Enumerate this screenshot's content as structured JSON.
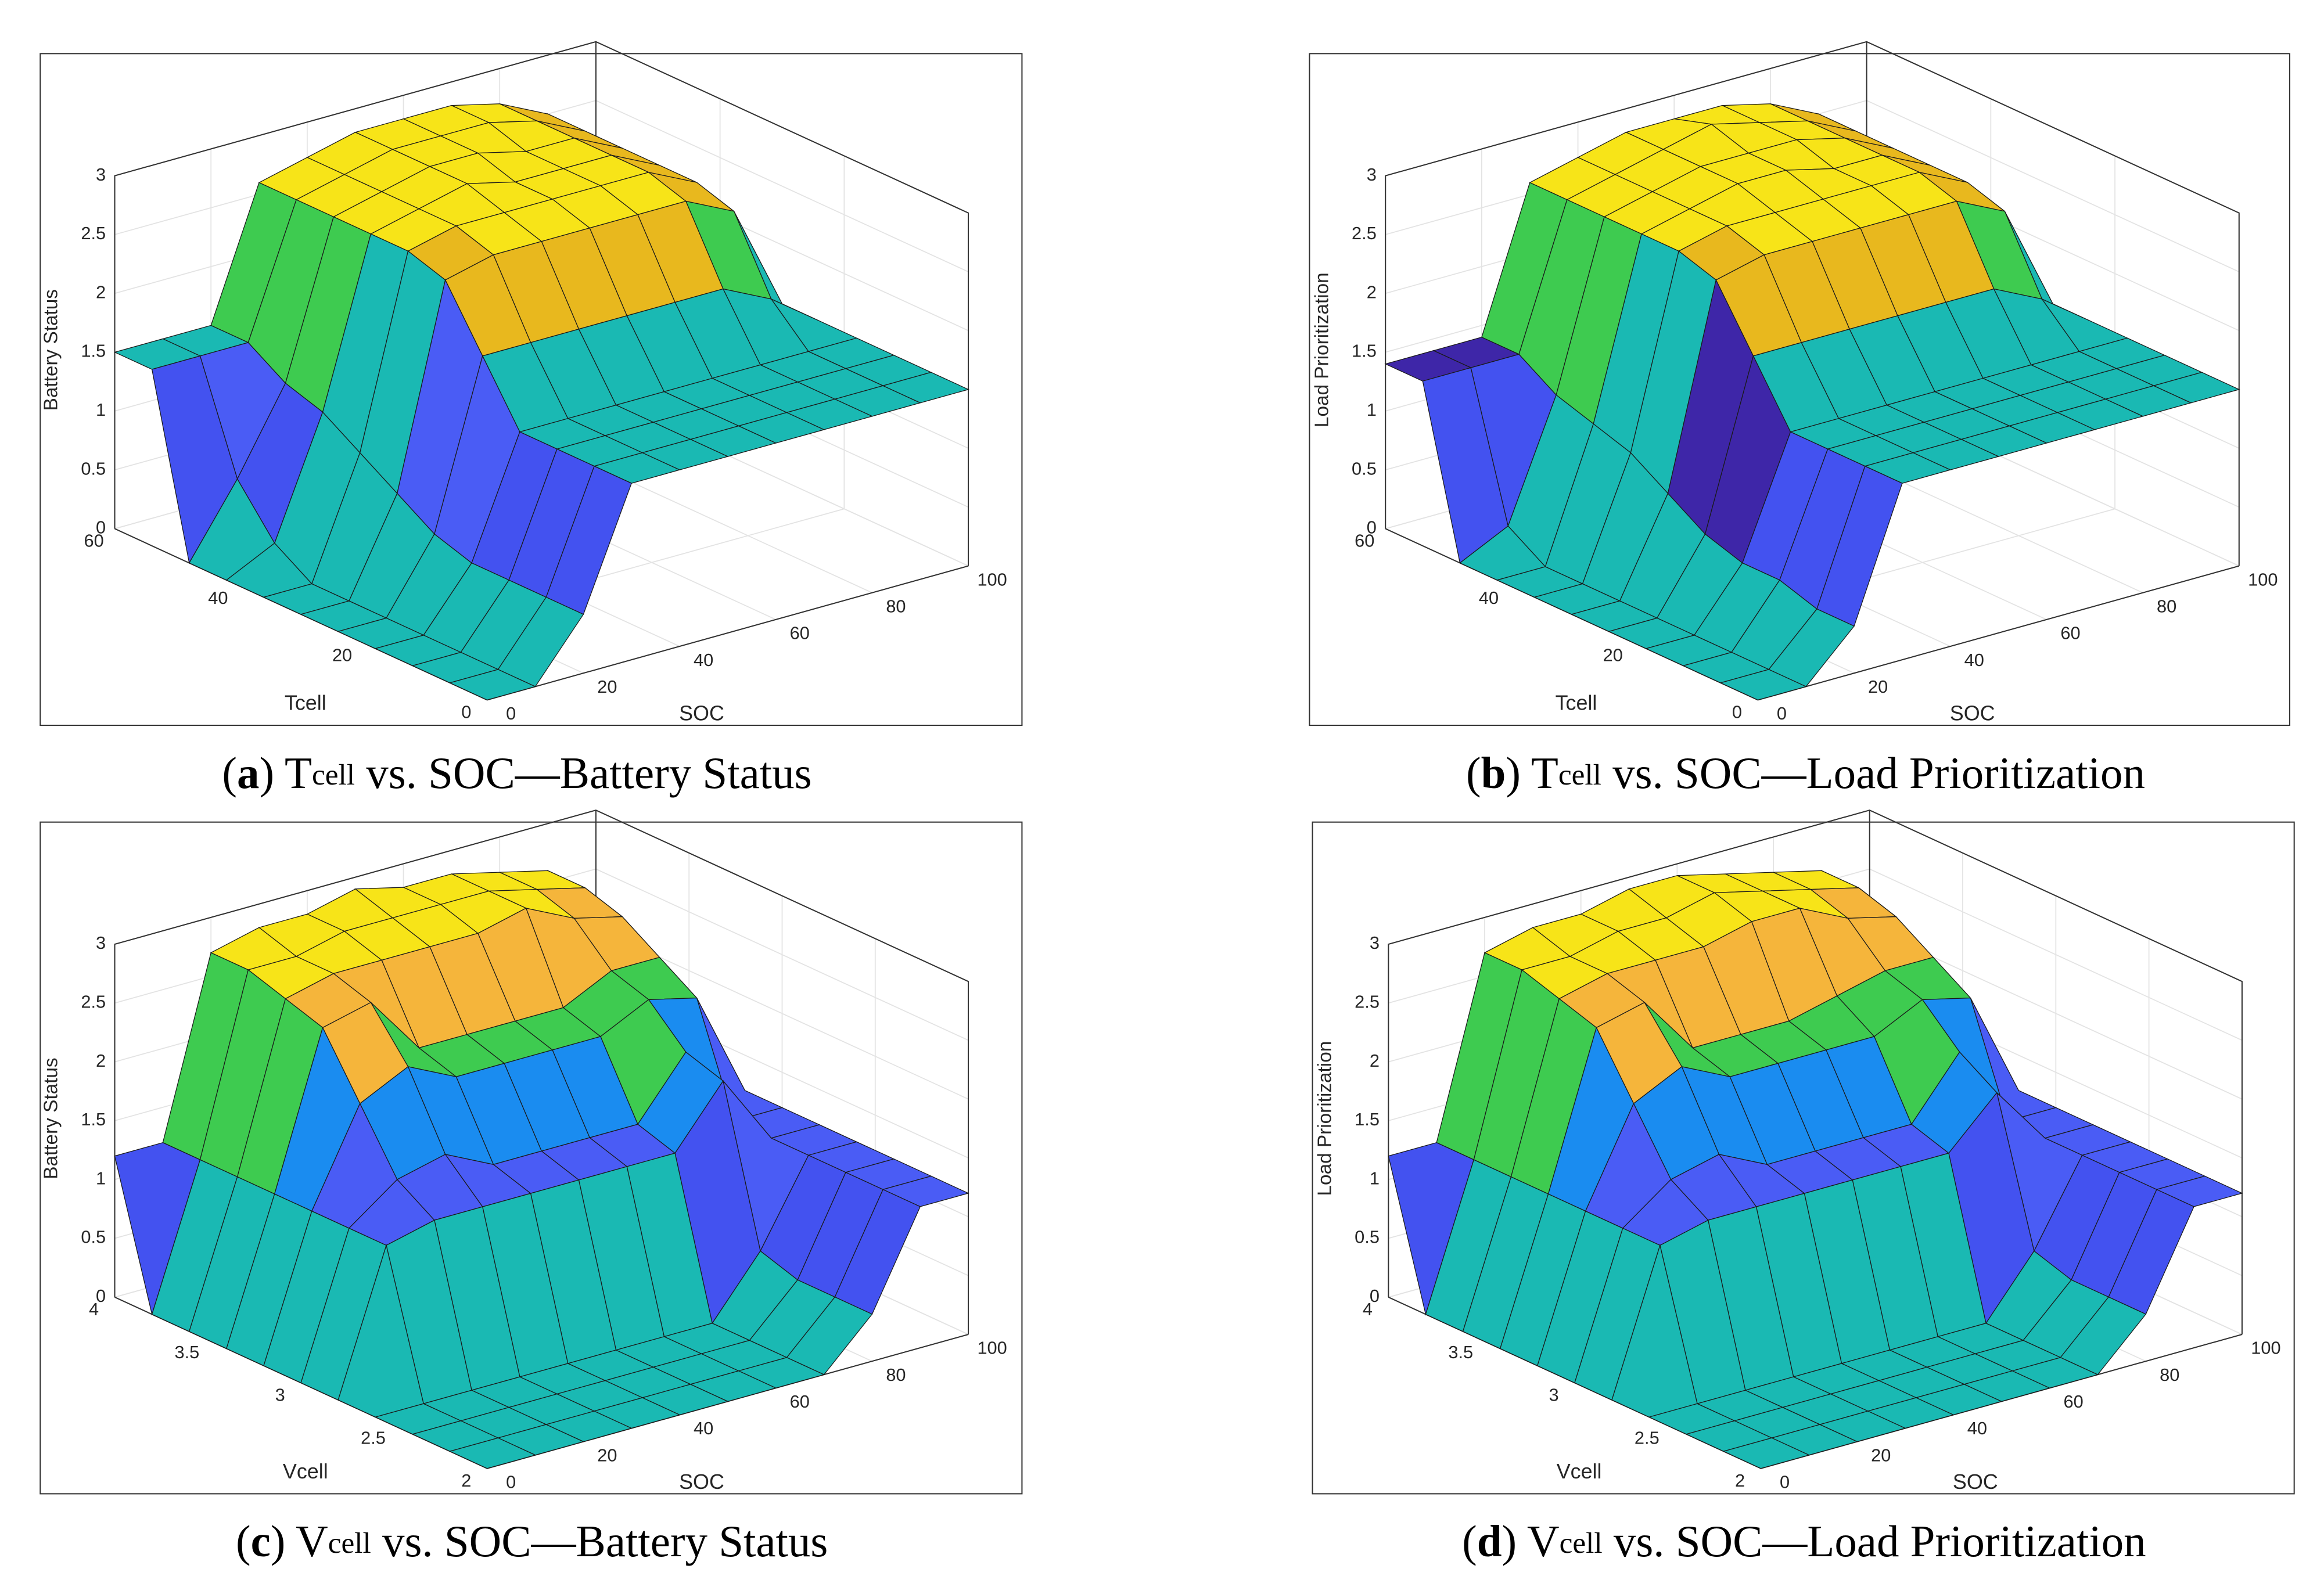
{
  "chart_data": [
    {
      "type": "surface",
      "caption": [
        "(",
        "a",
        ") T",
        "cell",
        " vs. SOC—Battery Status"
      ],
      "xlabel": "SOC",
      "ylabel": "Tcell",
      "zlabel": "Battery Status",
      "x": [
        0,
        10,
        20,
        30,
        40,
        50,
        60,
        70,
        80,
        90,
        100
      ],
      "y": [
        0,
        6,
        12,
        18,
        24,
        30,
        36,
        42,
        48,
        54,
        60
      ],
      "z": [
        [
          0,
          0,
          0.5,
          1.5,
          1.5,
          1.5,
          1.5,
          1.5,
          1.5,
          1.5,
          1.5
        ],
        [
          0,
          0,
          0.5,
          1.5,
          1.5,
          1.5,
          1.5,
          1.5,
          1.5,
          1.5,
          1.5
        ],
        [
          0,
          0,
          0.5,
          1.5,
          1.5,
          1.5,
          1.5,
          1.5,
          1.5,
          1.5,
          1.5
        ],
        [
          0,
          0,
          0.5,
          1.5,
          1.5,
          1.5,
          1.5,
          1.5,
          1.5,
          1.5,
          1.5
        ],
        [
          0,
          0,
          0.6,
          2,
          2,
          2,
          2,
          2,
          2,
          1.8,
          1.5
        ],
        [
          0,
          0,
          0.8,
          2.5,
          2.6,
          2.6,
          2.6,
          2.6,
          2.6,
          2.4,
          1.5
        ],
        [
          0,
          0,
          1,
          2.6,
          2.7,
          2.7,
          2.7,
          2.7,
          2.7,
          2.5,
          1.5
        ],
        [
          0,
          0.2,
          1.2,
          2.6,
          2.7,
          2.8,
          2.7,
          2.7,
          2.7,
          2.5,
          1.5
        ],
        [
          0,
          0.6,
          1.3,
          2.6,
          2.7,
          2.8,
          2.8,
          2.7,
          2.7,
          2.5,
          1.5
        ],
        [
          1.5,
          1.5,
          1.5,
          2.6,
          2.7,
          2.8,
          2.8,
          2.8,
          2.7,
          2.5,
          1.5
        ],
        [
          1.5,
          1.5,
          1.5,
          2.6,
          2.7,
          2.8,
          2.8,
          2.8,
          2.7,
          2.5,
          1.5
        ]
      ],
      "xlim": [
        0,
        100
      ],
      "ylim": [
        0,
        60
      ],
      "zlim": [
        0,
        3
      ],
      "xticks": [
        0,
        20,
        40,
        60,
        80,
        100
      ],
      "yticks": [
        0,
        20,
        40,
        60
      ],
      "zticks": [
        0,
        0.5,
        1,
        1.5,
        2,
        2.5,
        3
      ],
      "grid": true,
      "clim": [
        0,
        3
      ],
      "colormap": [
        "#1ab9b3",
        "#1ab9b3",
        "#4352f0",
        "#4a5cf5",
        "#1ab9b3",
        "#3ecb50",
        "#e8b81e",
        "#f7e418"
      ]
    },
    {
      "type": "surface",
      "caption": [
        "(",
        "b",
        ") T",
        "cell",
        " vs. SOC—Load Prioritization"
      ],
      "xlabel": "SOC",
      "ylabel": "Tcell",
      "zlabel": "Load Prioritization",
      "x": [
        0,
        10,
        20,
        30,
        40,
        50,
        60,
        70,
        80,
        90,
        100
      ],
      "y": [
        0,
        6,
        12,
        18,
        24,
        30,
        36,
        42,
        48,
        54,
        60
      ],
      "z": [
        [
          0,
          0,
          0.4,
          1.5,
          1.5,
          1.5,
          1.5,
          1.5,
          1.5,
          1.5,
          1.5
        ],
        [
          0,
          0,
          0.4,
          1.5,
          1.5,
          1.5,
          1.5,
          1.5,
          1.5,
          1.5,
          1.5
        ],
        [
          0,
          0,
          0.5,
          1.5,
          1.5,
          1.5,
          1.5,
          1.5,
          1.5,
          1.5,
          1.5
        ],
        [
          0,
          0,
          0.5,
          1.5,
          1.5,
          1.5,
          1.5,
          1.5,
          1.5,
          1.5,
          1.5
        ],
        [
          0,
          0,
          0.6,
          2,
          2,
          2,
          2,
          2,
          2,
          1.8,
          1.5
        ],
        [
          0,
          0,
          0.8,
          2.5,
          2.6,
          2.6,
          2.6,
          2.6,
          2.6,
          2.4,
          1.5
        ],
        [
          0,
          0,
          1,
          2.6,
          2.7,
          2.7,
          2.7,
          2.7,
          2.7,
          2.5,
          1.5
        ],
        [
          0,
          0,
          1.1,
          2.6,
          2.7,
          2.8,
          2.8,
          2.7,
          2.7,
          2.5,
          1.5
        ],
        [
          0,
          0.2,
          1.2,
          2.6,
          2.7,
          2.8,
          2.8,
          2.8,
          2.7,
          2.5,
          1.5
        ],
        [
          1.4,
          1.4,
          1.4,
          2.6,
          2.7,
          2.8,
          2.9,
          2.8,
          2.7,
          2.5,
          1.5
        ],
        [
          1.4,
          1.4,
          1.4,
          2.6,
          2.7,
          2.8,
          2.8,
          2.8,
          2.7,
          2.5,
          1.5
        ]
      ],
      "xlim": [
        0,
        100
      ],
      "ylim": [
        0,
        60
      ],
      "zlim": [
        0,
        3
      ],
      "xticks": [
        0,
        20,
        40,
        60,
        80,
        100
      ],
      "yticks": [
        0,
        20,
        40,
        60
      ],
      "zticks": [
        0,
        0.5,
        1,
        1.5,
        2,
        2.5,
        3
      ],
      "grid": true,
      "clim": [
        0,
        3
      ],
      "colormap": [
        "#1ab9b3",
        "#1ab9b3",
        "#4352f0",
        "#3e26a8",
        "#1ab9b3",
        "#3ecb50",
        "#e8b81e",
        "#f7e418"
      ]
    },
    {
      "type": "surface",
      "caption": [
        "(",
        "c",
        ") V",
        "cell",
        " vs. SOC—Battery Status"
      ],
      "xlabel": "SOC",
      "ylabel": "Vcell",
      "zlabel": "Battery Status",
      "x": [
        0,
        10,
        20,
        30,
        40,
        50,
        60,
        70,
        80,
        90,
        100
      ],
      "y": [
        2,
        2.2,
        2.4,
        2.6,
        2.8,
        3,
        3.2,
        3.4,
        3.6,
        3.8,
        4
      ],
      "z": [
        [
          0,
          0,
          0,
          0,
          0,
          0,
          0,
          0,
          0.4,
          1.2,
          1.2
        ],
        [
          0,
          0,
          0,
          0,
          0,
          0,
          0,
          0,
          0.4,
          1.2,
          1.2
        ],
        [
          0,
          0,
          0,
          0,
          0,
          0,
          0,
          0,
          0.4,
          1.2,
          1.2
        ],
        [
          0,
          0,
          0,
          0,
          0,
          0,
          0,
          0,
          0.5,
          1.2,
          1.2
        ],
        [
          0,
          1.2,
          1.3,
          1.3,
          1.3,
          1.3,
          1.3,
          1.3,
          1.8,
          1.2,
          1.2
        ],
        [
          0,
          1.2,
          1.5,
          1.6,
          1.4,
          1.4,
          1.4,
          1.4,
          1.9,
          1.2,
          1.2
        ],
        [
          0,
          1.2,
          2,
          2.2,
          2,
          2,
          2,
          2,
          2.2,
          2.1,
          1.2
        ],
        [
          0,
          1.2,
          2.5,
          2.6,
          2.1,
          2.1,
          2.1,
          2.1,
          2.3,
          2.3,
          1.2
        ],
        [
          0,
          1.2,
          2.6,
          2.7,
          2.7,
          2.7,
          2.7,
          2.8,
          2.6,
          2.5,
          1.2
        ],
        [
          0,
          1.2,
          2.7,
          2.7,
          2.8,
          2.8,
          2.8,
          2.8,
          2.7,
          2.6,
          1.2
        ],
        [
          1.2,
          1.2,
          2.7,
          2.8,
          2.8,
          2.9,
          2.8,
          2.8,
          2.7,
          2.6,
          1.2
        ]
      ],
      "xlim": [
        0,
        100
      ],
      "ylim": [
        2,
        4
      ],
      "zlim": [
        0,
        3
      ],
      "xticks": [
        0,
        20,
        40,
        60,
        80,
        100
      ],
      "yticks": [
        2,
        2.5,
        3,
        3.5,
        4
      ],
      "zticks": [
        0,
        0.5,
        1,
        1.5,
        2,
        2.5,
        3
      ],
      "grid": true,
      "clim": [
        0,
        3
      ],
      "colormap": [
        "#1ab9b3",
        "#1ab9b3",
        "#4352f0",
        "#4a5cf5",
        "#1a8cf0",
        "#3ecb50",
        "#f5b53b",
        "#f7e418"
      ]
    },
    {
      "type": "surface",
      "caption": [
        "(",
        "d",
        ") V",
        "cell",
        " vs. SOC—Load Prioritization"
      ],
      "xlabel": "SOC",
      "ylabel": "Vcell",
      "zlabel": "Load Prioritization",
      "x": [
        0,
        10,
        20,
        30,
        40,
        50,
        60,
        70,
        80,
        90,
        100
      ],
      "y": [
        2,
        2.2,
        2.4,
        2.6,
        2.8,
        3,
        3.2,
        3.4,
        3.6,
        3.8,
        4
      ],
      "z": [
        [
          0,
          0,
          0,
          0,
          0,
          0,
          0,
          0,
          0.4,
          1.2,
          1.2
        ],
        [
          0,
          0,
          0,
          0,
          0,
          0,
          0,
          0,
          0.4,
          1.2,
          1.2
        ],
        [
          0,
          0,
          0,
          0,
          0,
          0,
          0,
          0,
          0.4,
          1.2,
          1.2
        ],
        [
          0,
          0,
          0,
          0,
          0,
          0,
          0,
          0,
          0.5,
          1.2,
          1.2
        ],
        [
          0,
          1.2,
          1.3,
          1.3,
          1.3,
          1.3,
          1.3,
          1.3,
          1.7,
          1.2,
          1.2
        ],
        [
          0,
          1.2,
          1.5,
          1.6,
          1.4,
          1.4,
          1.4,
          1.4,
          1.9,
          1.2,
          1.2
        ],
        [
          0,
          1.2,
          2,
          2.2,
          2,
          2,
          2,
          2,
          2.2,
          2.1,
          1.2
        ],
        [
          0,
          1.2,
          2.5,
          2.6,
          2.1,
          2.1,
          2.1,
          2.2,
          2.3,
          2.3,
          1.2
        ],
        [
          0,
          1.2,
          2.6,
          2.7,
          2.7,
          2.7,
          2.8,
          2.8,
          2.6,
          2.5,
          1.2
        ],
        [
          0,
          1.2,
          2.7,
          2.7,
          2.8,
          2.8,
          2.9,
          2.8,
          2.7,
          2.6,
          1.2
        ],
        [
          1.2,
          1.2,
          2.7,
          2.8,
          2.8,
          2.9,
          2.9,
          2.8,
          2.7,
          2.6,
          1.2
        ]
      ],
      "xlim": [
        0,
        100
      ],
      "ylim": [
        2,
        4
      ],
      "zlim": [
        0,
        3
      ],
      "xticks": [
        0,
        20,
        40,
        60,
        80,
        100
      ],
      "yticks": [
        2,
        2.5,
        3,
        3.5,
        4
      ],
      "zticks": [
        0,
        0.5,
        1,
        1.5,
        2,
        2.5,
        3
      ],
      "grid": true,
      "clim": [
        0,
        3
      ],
      "colormap": [
        "#1ab9b3",
        "#1ab9b3",
        "#4352f0",
        "#4a5cf5",
        "#1a8cf0",
        "#3ecb50",
        "#f5b53b",
        "#f7e418"
      ]
    }
  ]
}
